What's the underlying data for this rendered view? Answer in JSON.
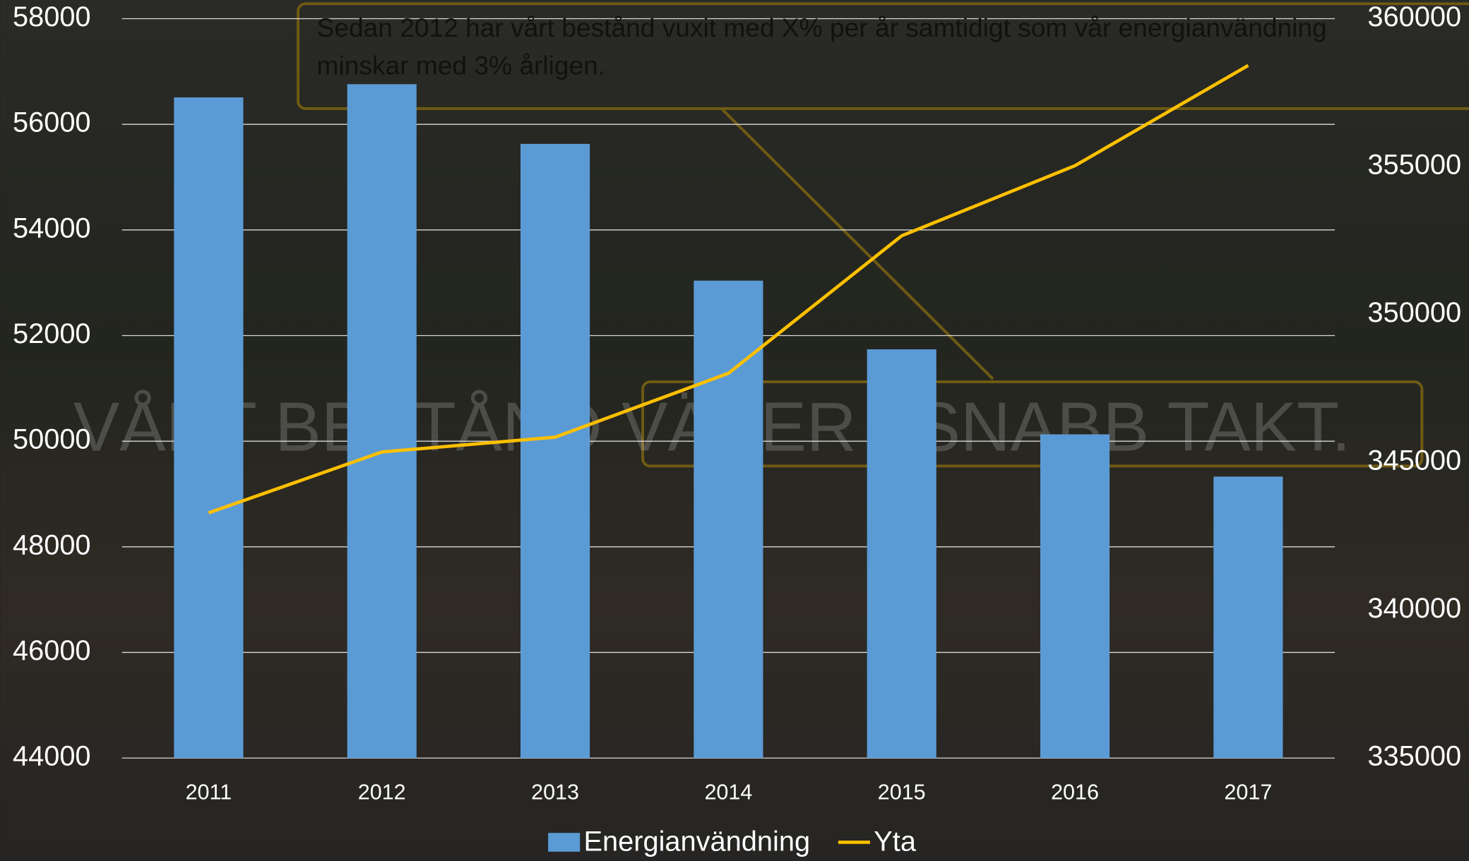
{
  "chart_data": {
    "type": "bar-line",
    "watermark": "VÅRT BESTÅND VÄXER I SNABB TAKT.",
    "annotation": [
      "Sedan 2012 har vårt bestånd vuxit med X% per år samtidigt som vår energianvändning",
      "minskar med 3% årligen."
    ],
    "categories": [
      "2011",
      "2012",
      "2013",
      "2014",
      "2015",
      "2016",
      "2017"
    ],
    "series": [
      {
        "name": "Energianvändning",
        "type": "bar",
        "color": "#5b9bd5",
        "values": [
          56510,
          56760,
          55630,
          53040,
          51740,
          50130,
          49330
        ]
      },
      {
        "name": "Yta",
        "type": "line",
        "axis": "y2",
        "color": "#ffc000",
        "values": [
          343290,
          345350,
          345850,
          348010,
          352660,
          355030,
          358420
        ]
      }
    ],
    "ylim": [
      44000,
      58000
    ],
    "yticks": [
      44000,
      46000,
      48000,
      50000,
      52000,
      54000,
      56000,
      58000
    ],
    "y2lim": [
      335000,
      360000
    ],
    "y2ticks": [
      335000,
      340000,
      345000,
      350000,
      355000,
      360000
    ],
    "grid": true,
    "legend": "bottom"
  }
}
